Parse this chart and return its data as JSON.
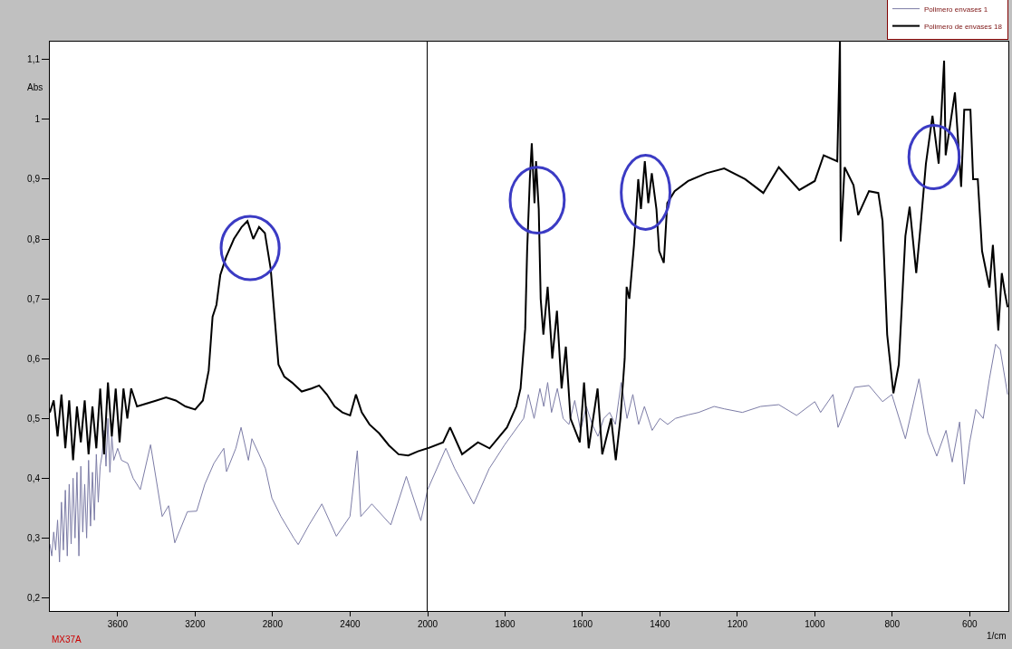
{
  "chart_data": [
    {
      "type": "line",
      "ylabel": "Abs",
      "annotations": [
        "MX37A"
      ],
      "xlim": [
        3950,
        2000
      ],
      "xticks": [
        3600,
        3200,
        2800,
        2400
      ],
      "ylim": [
        0.178,
        1.13
      ],
      "yticks": [
        {
          "value": 0.2,
          "label": "0,2"
        },
        {
          "value": 0.3,
          "label": "0,3"
        },
        {
          "value": 0.4,
          "label": "0,4"
        },
        {
          "value": 0.5,
          "label": "0,5"
        },
        {
          "value": 0.6,
          "label": "0,6"
        },
        {
          "value": 0.7,
          "label": "0,7"
        },
        {
          "value": 0.8,
          "label": "0,8"
        },
        {
          "value": 0.9,
          "label": "0,9"
        },
        {
          "value": 1,
          "label": "1"
        },
        {
          "value": 1.1,
          "label": "1,1"
        }
      ],
      "grid": false,
      "legend": false,
      "series": [
        {
          "color": "#7c7ca6",
          "x": [
            3950,
            3940,
            3930,
            3920,
            3910,
            3900,
            3890,
            3880,
            3870,
            3860,
            3850,
            3840,
            3830,
            3820,
            3810,
            3800,
            3790,
            3780,
            3770,
            3760,
            3750,
            3740,
            3730,
            3720,
            3710,
            3700,
            3690,
            3680,
            3670,
            3660,
            3650,
            3640,
            3630,
            3620,
            3600,
            3580,
            3548,
            3520,
            3483,
            3430,
            3370,
            3337,
            3305,
            3240,
            3192,
            3150,
            3103,
            3052,
            3038,
            2990,
            2963,
            2925,
            2907,
            2870,
            2837,
            2804,
            2757,
            2691,
            2668,
            2612,
            2546,
            2471,
            2401,
            2363,
            2345,
            2288,
            2190,
            2110,
            2035,
            2000
          ],
          "values": [
            0.29,
            0.27,
            0.31,
            0.28,
            0.33,
            0.26,
            0.36,
            0.28,
            0.38,
            0.27,
            0.39,
            0.29,
            0.4,
            0.3,
            0.41,
            0.27,
            0.42,
            0.31,
            0.39,
            0.3,
            0.43,
            0.32,
            0.41,
            0.33,
            0.44,
            0.36,
            0.42,
            0.44,
            0.48,
            0.42,
            0.5,
            0.41,
            0.47,
            0.43,
            0.45,
            0.43,
            0.425,
            0.4,
            0.381,
            0.456,
            0.336,
            0.354,
            0.292,
            0.344,
            0.345,
            0.39,
            0.425,
            0.45,
            0.411,
            0.45,
            0.485,
            0.43,
            0.466,
            0.44,
            0.416,
            0.367,
            0.336,
            0.3,
            0.289,
            0.322,
            0.357,
            0.303,
            0.336,
            0.446,
            0.336,
            0.357,
            0.322,
            0.403,
            0.329,
            0.381
          ]
        },
        {
          "color": "#000000",
          "x": [
            3950,
            3930,
            3910,
            3890,
            3870,
            3850,
            3830,
            3810,
            3790,
            3770,
            3750,
            3730,
            3710,
            3690,
            3670,
            3650,
            3630,
            3610,
            3590,
            3570,
            3550,
            3530,
            3500,
            3450,
            3400,
            3350,
            3300,
            3250,
            3200,
            3160,
            3130,
            3110,
            3090,
            3070,
            3040,
            3000,
            2960,
            2930,
            2900,
            2870,
            2840,
            2810,
            2790,
            2770,
            2740,
            2700,
            2650,
            2600,
            2560,
            2520,
            2480,
            2440,
            2400,
            2370,
            2340,
            2300,
            2250,
            2200,
            2150,
            2100,
            2050,
            2000
          ],
          "values": [
            0.51,
            0.53,
            0.47,
            0.54,
            0.45,
            0.53,
            0.43,
            0.52,
            0.46,
            0.53,
            0.44,
            0.52,
            0.45,
            0.55,
            0.44,
            0.56,
            0.47,
            0.55,
            0.46,
            0.55,
            0.5,
            0.55,
            0.52,
            0.525,
            0.53,
            0.535,
            0.53,
            0.52,
            0.515,
            0.53,
            0.58,
            0.67,
            0.69,
            0.74,
            0.77,
            0.8,
            0.82,
            0.83,
            0.8,
            0.82,
            0.81,
            0.75,
            0.67,
            0.59,
            0.57,
            0.56,
            0.545,
            0.55,
            0.555,
            0.54,
            0.52,
            0.51,
            0.505,
            0.54,
            0.51,
            0.49,
            0.475,
            0.455,
            0.44,
            0.438,
            0.445,
            0.45
          ]
        }
      ]
    },
    {
      "type": "line",
      "xlabel": "1/cm",
      "xlim": [
        2000,
        500
      ],
      "xticks": [
        2000,
        1800,
        1600,
        1400,
        1200,
        1000,
        800,
        600
      ],
      "ylim": [
        0.178,
        1.13
      ],
      "tick_labels": "x",
      "grid": false,
      "legend": "top right",
      "series": [
        {
          "name": "Polimero envases 1",
          "color": "#7c7ca6",
          "x": [
            2000,
            1953,
            1930,
            1881,
            1841,
            1801,
            1752,
            1740,
            1725,
            1710,
            1700,
            1690,
            1680,
            1665,
            1650,
            1635,
            1620,
            1605,
            1590,
            1575,
            1560,
            1545,
            1530,
            1515,
            1500,
            1485,
            1470,
            1455,
            1440,
            1420,
            1400,
            1380,
            1360,
            1327,
            1300,
            1260,
            1234,
            1187,
            1140,
            1093,
            1047,
            1000,
            985,
            953,
            940,
            897,
            860,
            825,
            801,
            766,
            731,
            708,
            685,
            661,
            645,
            626,
            614,
            600,
            584,
            565,
            549,
            533,
            521,
            502
          ],
          "values": [
            0.381,
            0.45,
            0.416,
            0.357,
            0.416,
            0.456,
            0.5,
            0.54,
            0.5,
            0.55,
            0.52,
            0.56,
            0.51,
            0.55,
            0.5,
            0.49,
            0.53,
            0.48,
            0.52,
            0.49,
            0.47,
            0.5,
            0.51,
            0.49,
            0.56,
            0.5,
            0.54,
            0.49,
            0.52,
            0.48,
            0.5,
            0.49,
            0.5,
            0.506,
            0.51,
            0.52,
            0.516,
            0.51,
            0.52,
            0.523,
            0.505,
            0.528,
            0.51,
            0.54,
            0.485,
            0.552,
            0.555,
            0.528,
            0.54,
            0.466,
            0.566,
            0.476,
            0.437,
            0.48,
            0.427,
            0.494,
            0.39,
            0.46,
            0.515,
            0.5,
            0.566,
            0.624,
            0.615,
            0.54
          ]
        },
        {
          "name": "Polimero de envases 18",
          "color": "#000000",
          "x": [
            2000,
            1960,
            1942,
            1911,
            1870,
            1840,
            1795,
            1771,
            1760,
            1748,
            1743,
            1736,
            1731,
            1724,
            1720,
            1713,
            1708,
            1701,
            1690,
            1678,
            1666,
            1654,
            1643,
            1631,
            1607,
            1596,
            1584,
            1561,
            1549,
            1526,
            1514,
            1502,
            1491,
            1486,
            1479,
            1467,
            1456,
            1449,
            1439,
            1430,
            1421,
            1409,
            1402,
            1390,
            1381,
            1362,
            1327,
            1280,
            1234,
            1180,
            1133,
            1093,
            1040,
            1000,
            977,
            942,
            935,
            933,
            923,
            900,
            888,
            860,
            836,
            825,
            813,
            797,
            783,
            766,
            755,
            738,
            727,
            713,
            696,
            680,
            666,
            662,
            638,
            622,
            614,
            598,
            591,
            579,
            568,
            549,
            540,
            533,
            526,
            517,
            509,
            502
          ],
          "values": [
            0.45,
            0.46,
            0.485,
            0.44,
            0.46,
            0.45,
            0.485,
            0.52,
            0.55,
            0.65,
            0.78,
            0.9,
            0.96,
            0.86,
            0.93,
            0.85,
            0.7,
            0.64,
            0.72,
            0.6,
            0.68,
            0.55,
            0.62,
            0.5,
            0.46,
            0.56,
            0.45,
            0.55,
            0.44,
            0.5,
            0.43,
            0.5,
            0.6,
            0.72,
            0.7,
            0.79,
            0.9,
            0.85,
            0.93,
            0.86,
            0.91,
            0.85,
            0.78,
            0.76,
            0.86,
            0.88,
            0.897,
            0.91,
            0.918,
            0.9,
            0.877,
            0.92,
            0.882,
            0.897,
            0.94,
            0.93,
            1.13,
            0.796,
            0.92,
            0.89,
            0.84,
            0.88,
            0.877,
            0.83,
            0.64,
            0.542,
            0.59,
            0.805,
            0.854,
            0.743,
            0.82,
            0.926,
            1.006,
            0.926,
            1.098,
            0.94,
            1.045,
            0.887,
            1.016,
            1.016,
            0.9,
            0.9,
            0.78,
            0.719,
            0.79,
            0.72,
            0.647,
            0.743,
            0.71,
            0.686
          ]
        }
      ]
    }
  ]
}
